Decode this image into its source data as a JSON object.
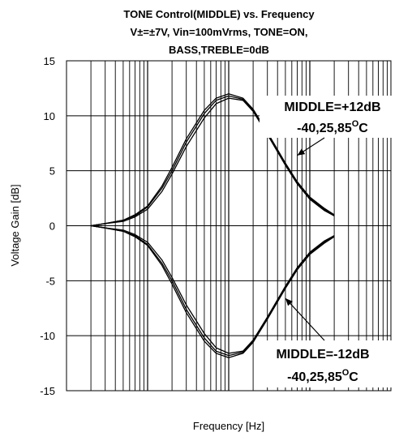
{
  "chart_data": {
    "type": "line",
    "title_lines": [
      "TONE Control(MIDDLE) vs. Frequency",
      "V±=±7V, Vin=100mVrms, TONE=ON,",
      "BASS,TREBLE=0dB"
    ],
    "xlabel": "Frequency [Hz]",
    "ylabel": "Voltage Gain [dB]",
    "x_scale": "log",
    "xlim": [
      10,
      100000
    ],
    "ylim": [
      -15,
      15
    ],
    "y_ticks": [
      15,
      10,
      5,
      0,
      -5,
      -10,
      -15
    ],
    "y_tick_labels": [
      "15",
      "10",
      "5",
      "0",
      "-5",
      "-10",
      "-15"
    ],
    "grid": true,
    "series": [
      {
        "name": "MIDDLE=+12dB -40°C",
        "x": [
          20,
          30,
          50,
          70,
          100,
          150,
          200,
          300,
          500,
          700,
          1000,
          1500,
          2000,
          3000,
          5000,
          7000,
          10000,
          15000,
          20000
        ],
        "values": [
          0.0,
          0.2,
          0.5,
          1.0,
          1.8,
          3.6,
          5.3,
          7.9,
          10.5,
          11.6,
          12.0,
          11.6,
          10.6,
          8.5,
          5.7,
          4.0,
          2.6,
          1.6,
          1.0
        ]
      },
      {
        "name": "MIDDLE=+12dB 25°C",
        "x": [
          20,
          30,
          50,
          70,
          100,
          150,
          200,
          300,
          500,
          700,
          1000,
          1500,
          2000,
          3000,
          5000,
          7000,
          10000,
          15000,
          20000
        ],
        "values": [
          0.0,
          0.2,
          0.5,
          0.9,
          1.7,
          3.4,
          5.0,
          7.6,
          10.2,
          11.4,
          11.8,
          11.5,
          10.5,
          8.4,
          5.6,
          3.9,
          2.5,
          1.5,
          0.9
        ]
      },
      {
        "name": "MIDDLE=+12dB 85°C",
        "x": [
          20,
          30,
          50,
          70,
          100,
          150,
          200,
          300,
          500,
          700,
          1000,
          1500,
          2000,
          3000,
          5000,
          7000,
          10000,
          15000,
          20000
        ],
        "values": [
          0.0,
          0.2,
          0.4,
          0.8,
          1.5,
          3.1,
          4.7,
          7.2,
          9.8,
          11.1,
          11.6,
          11.4,
          10.4,
          8.3,
          5.5,
          3.8,
          2.4,
          1.4,
          0.9
        ]
      },
      {
        "name": "MIDDLE=-12dB -40°C",
        "x": [
          20,
          30,
          50,
          70,
          100,
          150,
          200,
          300,
          500,
          700,
          1000,
          1500,
          2000,
          3000,
          5000,
          7000,
          10000,
          15000,
          20000
        ],
        "values": [
          0.0,
          -0.2,
          -0.5,
          -1.0,
          -1.8,
          -3.6,
          -5.3,
          -7.9,
          -10.5,
          -11.6,
          -12.0,
          -11.6,
          -10.6,
          -8.5,
          -5.7,
          -4.0,
          -2.6,
          -1.6,
          -1.0
        ]
      },
      {
        "name": "MIDDLE=-12dB 25°C",
        "x": [
          20,
          30,
          50,
          70,
          100,
          150,
          200,
          300,
          500,
          700,
          1000,
          1500,
          2000,
          3000,
          5000,
          7000,
          10000,
          15000,
          20000
        ],
        "values": [
          0.0,
          -0.2,
          -0.5,
          -0.9,
          -1.7,
          -3.4,
          -5.0,
          -7.6,
          -10.2,
          -11.4,
          -11.8,
          -11.5,
          -10.5,
          -8.4,
          -5.6,
          -3.9,
          -2.5,
          -1.5,
          -0.9
        ]
      },
      {
        "name": "MIDDLE=-12dB 85°C",
        "x": [
          20,
          30,
          50,
          70,
          100,
          150,
          200,
          300,
          500,
          700,
          1000,
          1500,
          2000,
          3000,
          5000,
          7000,
          10000,
          15000,
          20000
        ],
        "values": [
          0.0,
          -0.2,
          -0.4,
          -0.8,
          -1.5,
          -3.1,
          -4.7,
          -7.2,
          -9.8,
          -11.1,
          -11.6,
          -11.4,
          -10.4,
          -8.3,
          -5.5,
          -3.8,
          -2.4,
          -1.4,
          -0.9
        ]
      }
    ],
    "annotations": [
      {
        "line1": "MIDDLE=+12dB",
        "line2": "-40,25,85",
        "sup": "O",
        "suffix": "C",
        "arrow_to": [
          7000,
          6.4
        ]
      },
      {
        "line1": "MIDDLE=-12dB",
        "line2": "-40,25,85",
        "sup": "O",
        "suffix": "C",
        "arrow_to": [
          5000,
          -6.6
        ]
      }
    ]
  }
}
